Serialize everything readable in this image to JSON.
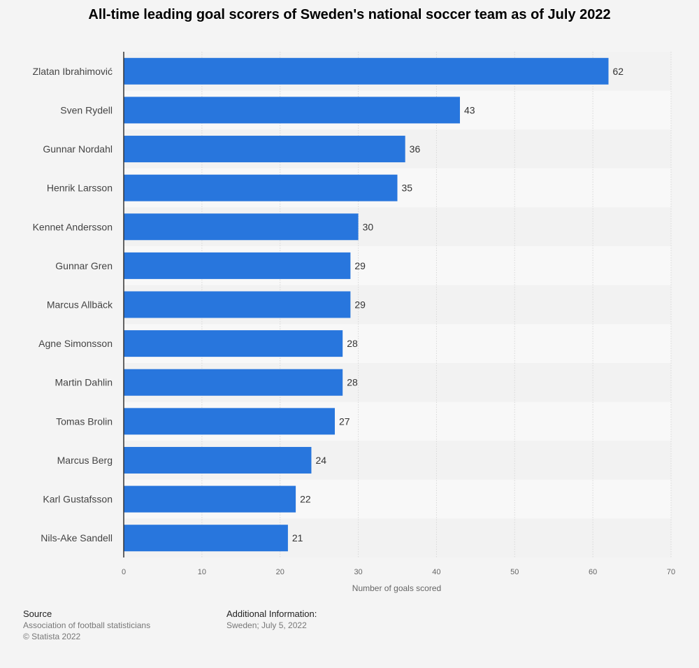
{
  "chart_data": {
    "type": "bar",
    "orientation": "horizontal",
    "title": "All-time leading goal scorers of Sweden's national soccer team as of July 2022",
    "xlabel": "Number of goals scored",
    "ylabel": "",
    "categories": [
      "Zlatan Ibrahimović",
      "Sven Rydell",
      "Gunnar Nordahl",
      "Henrik Larsson",
      "Kennet Andersson",
      "Gunnar Gren",
      "Marcus Allbäck",
      "Agne Simonsson",
      "Martin Dahlin",
      "Tomas Brolin",
      "Marcus Berg",
      "Karl Gustafsson",
      "Nils-Ake Sandell"
    ],
    "values": [
      62,
      43,
      36,
      35,
      30,
      29,
      29,
      28,
      28,
      27,
      24,
      22,
      21
    ],
    "xlim": [
      0,
      70
    ],
    "xticks": [
      0,
      10,
      20,
      30,
      40,
      50,
      60,
      70
    ],
    "grid": true,
    "bar_color": "#2876dd"
  },
  "footer": {
    "source_heading": "Source",
    "source_text": "Association of football statisticians",
    "copyright": "© Statista 2022",
    "info_heading": "Additional Information:",
    "info_text": "Sweden; July 5, 2022"
  }
}
